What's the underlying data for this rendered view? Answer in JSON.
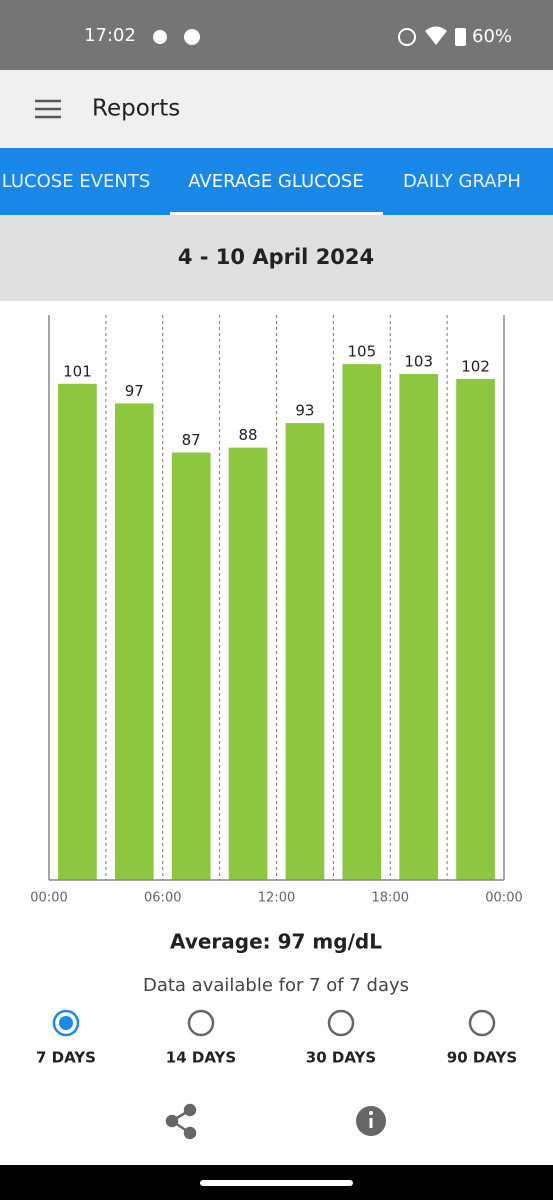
{
  "status_bar": {
    "time": "17:02",
    "battery": "60%"
  },
  "app_bar": {
    "title": "Reports"
  },
  "tabs": {
    "items": [
      "LUCOSE EVENTS",
      "AVERAGE GLUCOSE",
      "DAILY GRAPH"
    ],
    "selected": 1
  },
  "date_range": "4 - 10 April 2024",
  "chart_data": {
    "type": "histogram",
    "bins": [
      0,
      3,
      6,
      9,
      12,
      15,
      18,
      21,
      24
    ],
    "values": [
      101,
      97,
      87,
      88,
      93,
      105,
      103,
      102
    ],
    "color": "#8dc63f",
    "xlim": [
      0,
      24
    ],
    "xticks": [
      {
        "value": 0,
        "label": "00:00"
      },
      {
        "value": 6,
        "label": "06:00"
      },
      {
        "value": 12,
        "label": "12:00"
      },
      {
        "value": 18,
        "label": "18:00"
      },
      {
        "value": 24,
        "label": "00:00"
      }
    ],
    "ylim": [
      0,
      115
    ],
    "grid": true
  },
  "summary": {
    "average": "Average: 97 mg/dL",
    "availability": "Data available for 7 of 7 days"
  },
  "range_options": {
    "items": [
      "7 DAYS",
      "14 DAYS",
      "30 DAYS",
      "90 DAYS"
    ],
    "selected": 0
  }
}
